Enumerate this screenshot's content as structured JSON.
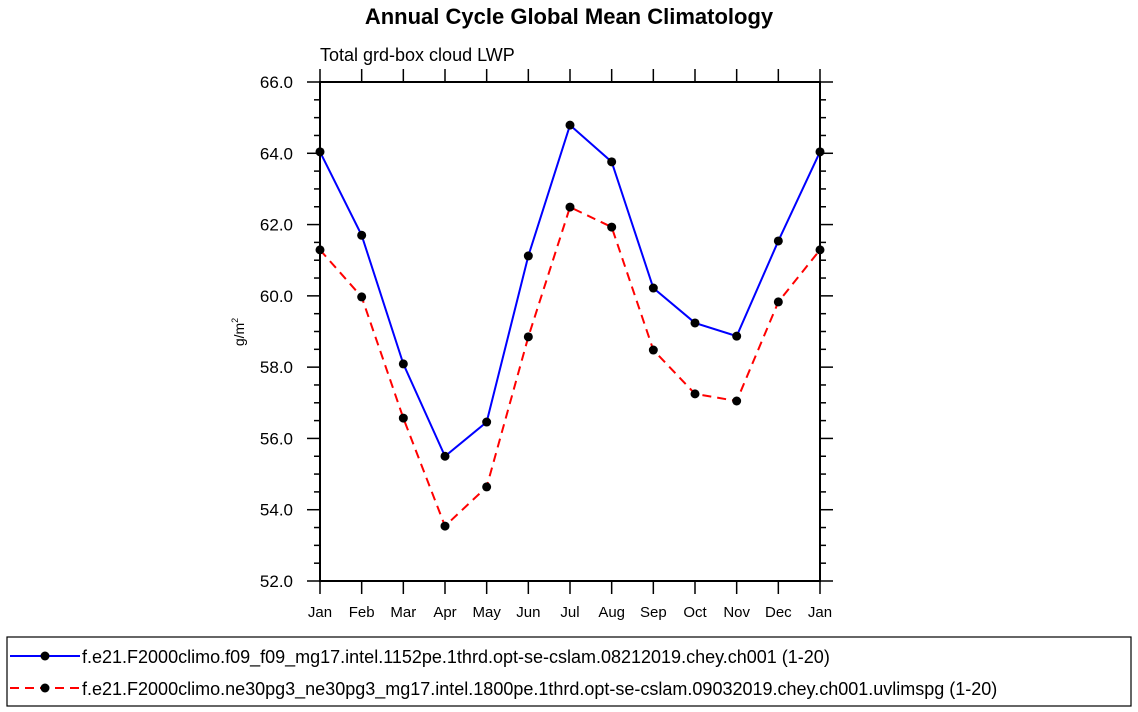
{
  "chart_data": {
    "type": "line",
    "title": "Annual Cycle Global Mean Climatology",
    "subtitle": "Total grd-box cloud LWP",
    "ylabel": "g/m",
    "ylabel_sup": "2",
    "xlabel": "",
    "ylim": [
      52.0,
      66.0
    ],
    "yticks": [
      "52.0",
      "54.0",
      "56.0",
      "58.0",
      "60.0",
      "62.0",
      "64.0",
      "66.0"
    ],
    "categories": [
      "Jan",
      "Feb",
      "Mar",
      "Apr",
      "May",
      "Jun",
      "Jul",
      "Aug",
      "Sep",
      "Oct",
      "Nov",
      "Dec",
      "Jan"
    ],
    "grid": false,
    "legend_placement": "bottom",
    "series": [
      {
        "name": "f.e21.F2000climo.f09_f09_mg17.intel.1152pe.1thrd.opt-se-cslam.08212019.chey.ch001 (1-20)",
        "color": "#0000ff",
        "dash": "solid",
        "marker": "filled-circle",
        "values": [
          64.04,
          61.7,
          58.09,
          55.5,
          56.46,
          61.12,
          64.79,
          63.76,
          60.22,
          59.24,
          58.87,
          61.54,
          64.04
        ]
      },
      {
        "name": "f.e21.F2000climo.ne30pg3_ne30pg3_mg17.intel.1800pe.1thrd.opt-se-cslam.09032019.chey.ch001.uvlimspg (1-20)",
        "color": "#ff0000",
        "dash": "dashed",
        "marker": "filled-circle",
        "values": [
          61.29,
          59.97,
          56.57,
          53.54,
          54.64,
          58.85,
          62.49,
          61.93,
          58.48,
          57.25,
          57.05,
          59.83,
          61.29
        ]
      }
    ]
  }
}
